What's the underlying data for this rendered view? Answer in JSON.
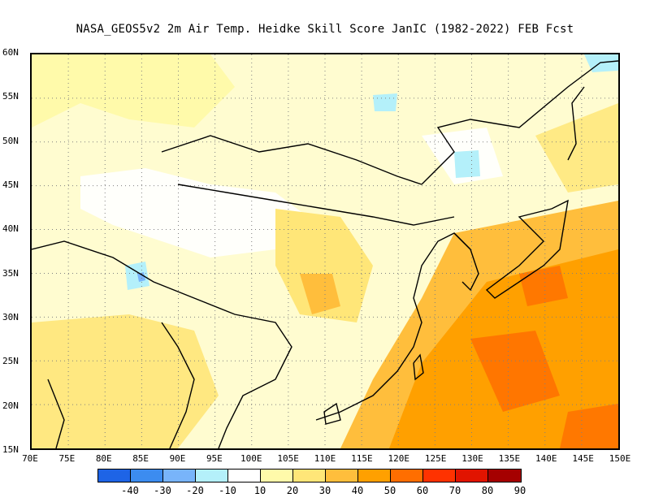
{
  "title": "NASA_GEOS5v2  2m Air Temp. Heidke Skill Score JanIC (1982-2022) FEB Fcst",
  "map": {
    "lon_labels": [
      "70E",
      "75E",
      "80E",
      "85E",
      "90E",
      "95E",
      "100E",
      "105E",
      "110E",
      "115E",
      "120E",
      "125E",
      "130E",
      "135E",
      "140E",
      "145E",
      "150E"
    ],
    "lat_labels": [
      "60N",
      "55N",
      "50N",
      "45N",
      "40N",
      "35N",
      "30N",
      "25N",
      "20N",
      "15N"
    ]
  },
  "colorbar": {
    "colors": [
      "#1e64e6",
      "#3c8cf0",
      "#78b4fa",
      "#b4f0fa",
      "#ffffff",
      "#fffaaa",
      "#ffe678",
      "#ffbe3c",
      "#ffa000",
      "#ff6e00",
      "#ff3200",
      "#e11400",
      "#a50000"
    ],
    "labels": [
      "-40",
      "-30",
      "-20",
      "-10",
      "10",
      "20",
      "30",
      "40",
      "50",
      "60",
      "70",
      "80",
      "90"
    ]
  },
  "colors": {
    "coastline": "#000000",
    "grid": "#808080"
  }
}
